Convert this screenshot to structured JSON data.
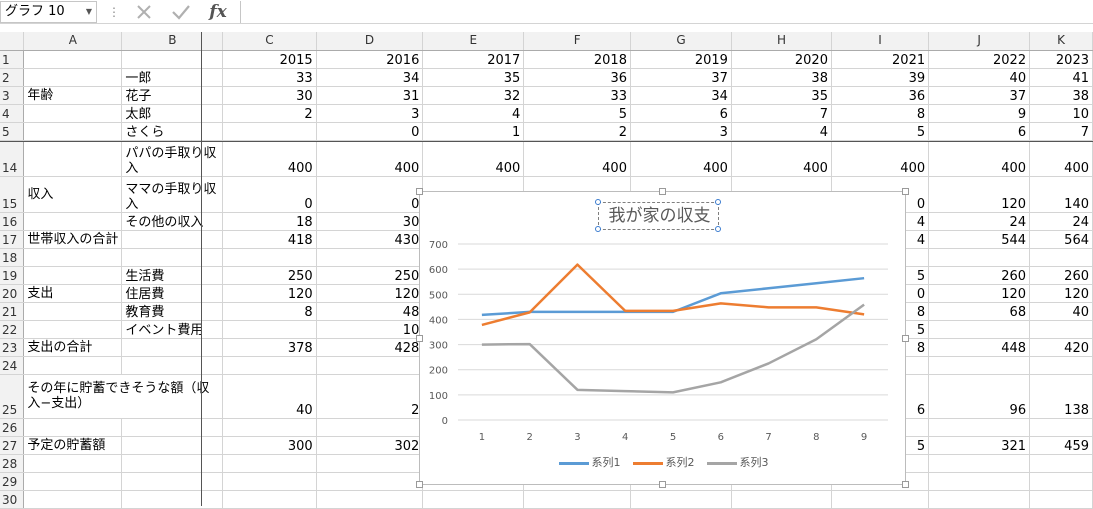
{
  "name_box": {
    "value": "グラフ 10"
  },
  "formula_bar": {
    "separator": "⋮",
    "cancel_icon": "close-icon",
    "enter_icon": "check-icon",
    "fx_label": "fx",
    "formula_value": ""
  },
  "columns": [
    "",
    "A",
    "B",
    "C",
    "D",
    "E",
    "F",
    "G",
    "H",
    "I",
    "J",
    "K"
  ],
  "rows": [
    {
      "num": "1",
      "a": "",
      "b": "",
      "vals": [
        "2015",
        "2016",
        "2017",
        "2018",
        "2019",
        "2020",
        "2021",
        "2022",
        "2023"
      ]
    },
    {
      "num": "2",
      "a": "",
      "b": "一郎",
      "vals": [
        "33",
        "34",
        "35",
        "36",
        "37",
        "38",
        "39",
        "40",
        "41"
      ]
    },
    {
      "num": "3",
      "a": "年齢",
      "b": "花子",
      "vals": [
        "30",
        "31",
        "32",
        "33",
        "34",
        "35",
        "36",
        "37",
        "38"
      ]
    },
    {
      "num": "4",
      "a": "",
      "b": "太郎",
      "vals": [
        "2",
        "3",
        "4",
        "5",
        "6",
        "7",
        "8",
        "9",
        "10"
      ]
    },
    {
      "num": "5",
      "a": "",
      "b": "さくら",
      "vals": [
        "",
        "0",
        "1",
        "2",
        "3",
        "4",
        "5",
        "6",
        "7"
      ]
    },
    {
      "num": "14",
      "a": "",
      "b": "パパの手取り収入",
      "vals": [
        "400",
        "400",
        "400",
        "400",
        "400",
        "400",
        "400",
        "400",
        "400"
      ]
    },
    {
      "num": "15",
      "a": "収入",
      "b": "ママの手取り収入",
      "vals": [
        "0",
        "0",
        "",
        "",
        "",
        "",
        "0",
        "120",
        "140"
      ]
    },
    {
      "num": "16",
      "a": "",
      "b": "その他の収入",
      "vals": [
        "18",
        "30",
        "",
        "",
        "",
        "",
        "4",
        "24",
        "24"
      ]
    },
    {
      "num": "17",
      "a": "世帯収入の合計",
      "b": "",
      "vals": [
        "418",
        "430",
        "",
        "",
        "",
        "",
        "4",
        "544",
        "564"
      ]
    },
    {
      "num": "18",
      "a": "",
      "b": "",
      "vals": [
        "",
        "",
        "",
        "",
        "",
        "",
        "",
        "",
        ""
      ]
    },
    {
      "num": "19",
      "a": "",
      "b": "生活費",
      "vals": [
        "250",
        "250",
        "",
        "",
        "",
        "",
        "5",
        "260",
        "260"
      ]
    },
    {
      "num": "20",
      "a": "支出",
      "b": "住居費",
      "vals": [
        "120",
        "120",
        "",
        "",
        "",
        "",
        "0",
        "120",
        "120"
      ]
    },
    {
      "num": "21",
      "a": "",
      "b": "教育費",
      "vals": [
        "8",
        "48",
        "",
        "",
        "",
        "",
        "8",
        "68",
        "40"
      ]
    },
    {
      "num": "22",
      "a": "",
      "b": "イベント費用",
      "vals": [
        "",
        "10",
        "",
        "",
        "",
        "",
        "5",
        "",
        ""
      ]
    },
    {
      "num": "23",
      "a": "支出の合計",
      "b": "",
      "vals": [
        "378",
        "428",
        "",
        "",
        "",
        "",
        "8",
        "448",
        "420"
      ]
    },
    {
      "num": "24",
      "a": "",
      "b": "",
      "vals": [
        "",
        "",
        "",
        "",
        "",
        "",
        "",
        "",
        ""
      ]
    },
    {
      "num": "25",
      "a": "その年に貯蓄できそうな額（収入−支出）",
      "b": "",
      "vals": [
        "40",
        "2",
        "",
        "",
        "",
        "",
        "6",
        "96",
        "138"
      ]
    },
    {
      "num": "26",
      "a": "",
      "b": "",
      "vals": [
        "",
        "",
        "",
        "",
        "",
        "",
        "",
        "",
        ""
      ]
    },
    {
      "num": "27",
      "a": "予定の貯蓄額",
      "b": "",
      "vals": [
        "300",
        "302",
        "",
        "",
        "",
        "",
        "5",
        "321",
        "459"
      ]
    },
    {
      "num": "28",
      "a": "",
      "b": "",
      "vals": [
        "",
        "",
        "",
        "",
        "",
        "",
        "",
        "",
        ""
      ]
    },
    {
      "num": "29",
      "a": "",
      "b": "",
      "vals": [
        "",
        "",
        "",
        "",
        "",
        "",
        "",
        "",
        ""
      ]
    },
    {
      "num": "30",
      "a": "",
      "b": "",
      "vals": [
        "",
        "",
        "",
        "",
        "",
        "",
        "",
        "",
        ""
      ]
    }
  ],
  "chart_data": {
    "type": "line",
    "title": "我が家の収支",
    "categories": [
      "1",
      "2",
      "3",
      "4",
      "5",
      "6",
      "7",
      "8",
      "9"
    ],
    "ylim": [
      0,
      700
    ],
    "yticks": [
      "0",
      "100",
      "200",
      "300",
      "400",
      "500",
      "600",
      "700"
    ],
    "grid": true,
    "legend_position": "bottom",
    "series": [
      {
        "name": "系列1",
        "color": "#5b9bd5",
        "values": [
          418,
          430,
          430,
          430,
          430,
          504,
          524,
          544,
          564
        ]
      },
      {
        "name": "系列2",
        "color": "#ed7d31",
        "values": [
          378,
          428,
          618,
          434,
          434,
          464,
          448,
          448,
          420
        ]
      },
      {
        "name": "系列3",
        "color": "#a5a5a5",
        "values": [
          300,
          302,
          120,
          115,
          110,
          150,
          225,
          321,
          459
        ]
      }
    ]
  }
}
